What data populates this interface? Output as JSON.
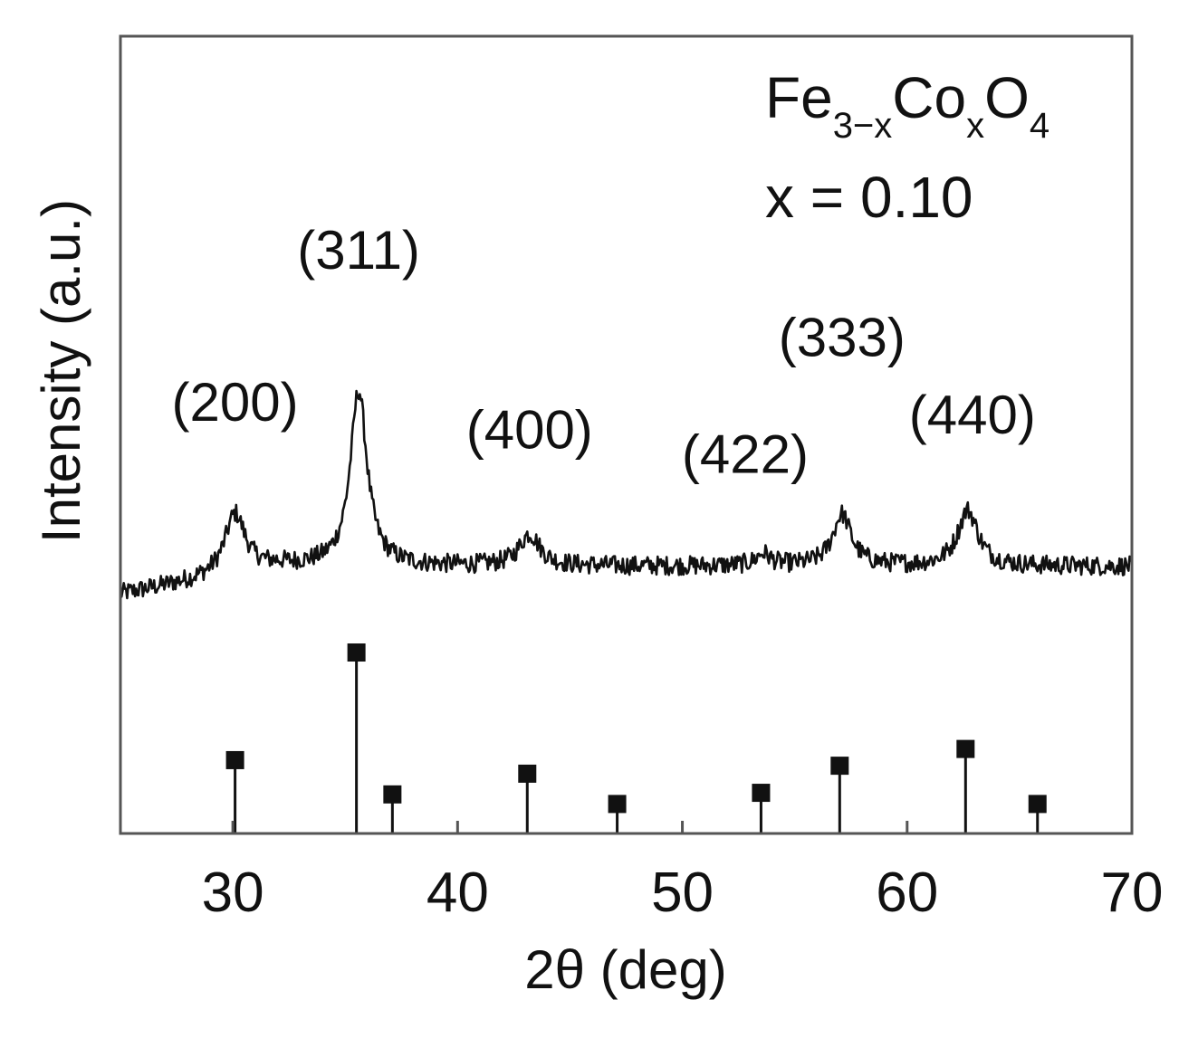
{
  "chart_data": {
    "type": "line",
    "xlabel": "2θ (deg)",
    "ylabel": "Intensity (a.u.)",
    "xlim": [
      25,
      70
    ],
    "ylim": [
      0,
      1
    ],
    "x_ticks": [
      30,
      40,
      50,
      60,
      70
    ],
    "y_ticks_shown": false,
    "grid": false,
    "colors": {
      "line": "#111111",
      "axes": "#555555",
      "stems": "#111111"
    },
    "annotation": {
      "formula_base1": "Fe",
      "formula_sub1": "3−x",
      "formula_base2": "Co",
      "formula_sub2": "x",
      "formula_base3": "O",
      "formula_sub3": "4",
      "composition": "x = 0.10"
    },
    "pattern": {
      "baseline": 0.335,
      "start_level": 0.3,
      "noise_amplitude": 0.012,
      "peaks": [
        {
          "label": "(200)",
          "position": 30.1,
          "height": 0.075,
          "width": 0.55
        },
        {
          "label": "(311)",
          "position": 35.6,
          "height": 0.22,
          "width": 0.45
        },
        {
          "label": "(400)",
          "position": 43.2,
          "height": 0.04,
          "width": 0.55
        },
        {
          "label": "(422)",
          "position": 53.6,
          "height": 0.015,
          "width": 0.4
        },
        {
          "label": "(333)",
          "position": 57.1,
          "height": 0.065,
          "width": 0.5
        },
        {
          "label": "(440)",
          "position": 62.7,
          "height": 0.07,
          "width": 0.55
        }
      ]
    },
    "reference_lines": [
      {
        "x": 30.1,
        "intensity": 0.092
      },
      {
        "x": 35.5,
        "intensity": 0.227
      },
      {
        "x": 37.1,
        "intensity": 0.049
      },
      {
        "x": 43.1,
        "intensity": 0.075
      },
      {
        "x": 47.1,
        "intensity": 0.037
      },
      {
        "x": 53.5,
        "intensity": 0.051
      },
      {
        "x": 57.0,
        "intensity": 0.085
      },
      {
        "x": 62.6,
        "intensity": 0.106
      },
      {
        "x": 65.8,
        "intensity": 0.037
      }
    ]
  }
}
